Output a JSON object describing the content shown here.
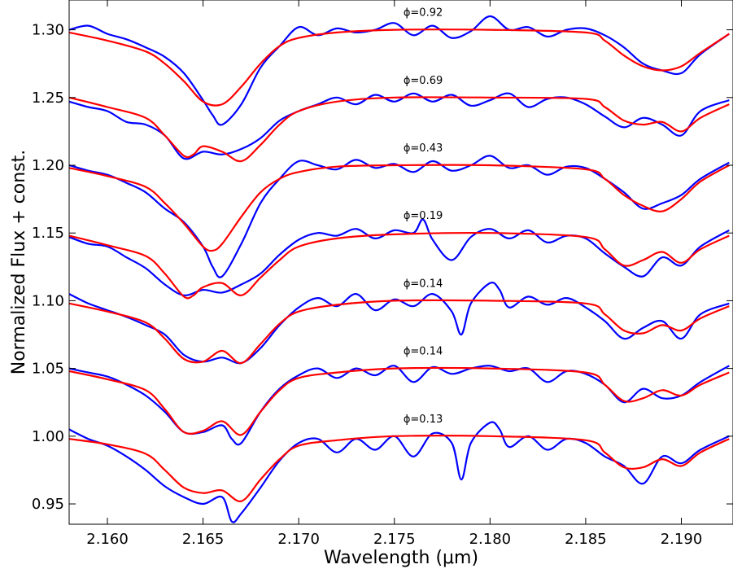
{
  "chart_data": {
    "type": "line",
    "xlabel": "Wavelength (μm)",
    "ylabel": "Normalized Flux + const.",
    "xlim": [
      2.158,
      2.1927
    ],
    "ylim": [
      0.935,
      1.322
    ],
    "xticks": [
      2.16,
      2.165,
      2.17,
      2.175,
      2.18,
      2.185,
      2.19
    ],
    "xtick_labels": [
      "2.160",
      "2.165",
      "2.170",
      "2.175",
      "2.180",
      "2.185",
      "2.190"
    ],
    "yticks": [
      0.95,
      1.0,
      1.05,
      1.1,
      1.15,
      1.2,
      1.25,
      1.3
    ],
    "ytick_labels": [
      "0.95",
      "1.00",
      "1.05",
      "1.10",
      "1.15",
      "1.20",
      "1.25",
      "1.30"
    ],
    "grid": false,
    "colors": {
      "observed": "#0000ff",
      "model": "#ff0000"
    },
    "phase_labels_x": 2.1765,
    "spectra": [
      {
        "label": "ϕ=0.92",
        "offset": 1.3,
        "observed_x": [
          2.158,
          2.159,
          2.16,
          2.161,
          2.162,
          2.163,
          2.164,
          2.165,
          2.1655,
          2.166,
          2.167,
          2.168,
          2.169,
          2.17,
          2.171,
          2.172,
          2.173,
          2.174,
          2.175,
          2.176,
          2.177,
          2.178,
          2.179,
          2.18,
          2.181,
          2.182,
          2.183,
          2.184,
          2.185,
          2.186,
          2.187,
          2.188,
          2.189,
          2.19,
          2.191,
          2.1925
        ],
        "observed_y": [
          1.3,
          1.303,
          1.297,
          1.293,
          1.287,
          1.28,
          1.268,
          1.248,
          1.237,
          1.23,
          1.245,
          1.272,
          1.288,
          1.302,
          1.296,
          1.301,
          1.298,
          1.3,
          1.305,
          1.296,
          1.303,
          1.294,
          1.299,
          1.31,
          1.3,
          1.302,
          1.295,
          1.3,
          1.301,
          1.296,
          1.287,
          1.275,
          1.27,
          1.268,
          1.282,
          1.297
        ],
        "model_x": [
          2.158,
          2.16,
          2.162,
          2.163,
          2.164,
          2.165,
          2.166,
          2.167,
          2.168,
          2.169,
          2.17,
          2.172,
          2.175,
          2.18,
          2.185,
          2.186,
          2.187,
          2.188,
          2.189,
          2.19,
          2.191,
          2.1925
        ],
        "model_y": [
          1.298,
          1.292,
          1.284,
          1.275,
          1.262,
          1.247,
          1.245,
          1.258,
          1.275,
          1.288,
          1.294,
          1.298,
          1.3,
          1.3,
          1.298,
          1.292,
          1.281,
          1.273,
          1.27,
          1.273,
          1.283,
          1.297
        ]
      },
      {
        "label": "ϕ=0.69",
        "offset": 1.25,
        "observed_x": [
          2.158,
          2.159,
          2.16,
          2.161,
          2.162,
          2.163,
          2.164,
          2.165,
          2.166,
          2.167,
          2.168,
          2.169,
          2.17,
          2.171,
          2.172,
          2.173,
          2.174,
          2.175,
          2.176,
          2.177,
          2.178,
          2.179,
          2.18,
          2.181,
          2.182,
          2.183,
          2.184,
          2.185,
          2.186,
          2.187,
          2.188,
          2.189,
          2.19,
          2.191,
          2.1925
        ],
        "observed_y": [
          1.247,
          1.243,
          1.24,
          1.232,
          1.23,
          1.222,
          1.205,
          1.21,
          1.208,
          1.212,
          1.22,
          1.233,
          1.24,
          1.245,
          1.25,
          1.245,
          1.252,
          1.247,
          1.253,
          1.247,
          1.252,
          1.244,
          1.248,
          1.253,
          1.243,
          1.249,
          1.25,
          1.245,
          1.236,
          1.228,
          1.235,
          1.23,
          1.222,
          1.24,
          1.248
        ],
        "model_x": [
          2.158,
          2.16,
          2.162,
          2.163,
          2.164,
          2.1645,
          2.165,
          2.166,
          2.167,
          2.168,
          2.169,
          2.17,
          2.172,
          2.175,
          2.18,
          2.185,
          2.186,
          2.187,
          2.188,
          2.189,
          2.19,
          2.191,
          2.1925
        ],
        "model_y": [
          1.25,
          1.243,
          1.235,
          1.222,
          1.207,
          1.208,
          1.214,
          1.21,
          1.203,
          1.215,
          1.23,
          1.24,
          1.247,
          1.25,
          1.25,
          1.249,
          1.243,
          1.233,
          1.23,
          1.232,
          1.225,
          1.235,
          1.245
        ]
      },
      {
        "label": "ϕ=0.43",
        "offset": 1.2,
        "observed_x": [
          2.158,
          2.159,
          2.16,
          2.161,
          2.162,
          2.163,
          2.164,
          2.165,
          2.1655,
          2.166,
          2.167,
          2.168,
          2.169,
          2.17,
          2.171,
          2.172,
          2.173,
          2.174,
          2.175,
          2.176,
          2.177,
          2.178,
          2.179,
          2.18,
          2.181,
          2.182,
          2.183,
          2.184,
          2.185,
          2.186,
          2.187,
          2.188,
          2.189,
          2.19,
          2.191,
          2.1925
        ],
        "observed_y": [
          1.2,
          1.196,
          1.193,
          1.187,
          1.18,
          1.168,
          1.158,
          1.14,
          1.125,
          1.118,
          1.142,
          1.172,
          1.19,
          1.203,
          1.2,
          1.197,
          1.204,
          1.198,
          1.201,
          1.195,
          1.203,
          1.196,
          1.2,
          1.207,
          1.198,
          1.2,
          1.193,
          1.199,
          1.198,
          1.19,
          1.18,
          1.168,
          1.172,
          1.178,
          1.19,
          1.202
        ],
        "model_x": [
          2.158,
          2.16,
          2.162,
          2.163,
          2.164,
          2.165,
          2.1655,
          2.166,
          2.167,
          2.168,
          2.169,
          2.17,
          2.172,
          2.175,
          2.18,
          2.185,
          2.186,
          2.187,
          2.188,
          2.189,
          2.19,
          2.191,
          2.1925
        ],
        "model_y": [
          1.198,
          1.192,
          1.184,
          1.172,
          1.157,
          1.14,
          1.137,
          1.142,
          1.162,
          1.18,
          1.19,
          1.195,
          1.199,
          1.2,
          1.2,
          1.197,
          1.19,
          1.178,
          1.17,
          1.166,
          1.175,
          1.188,
          1.2
        ]
      },
      {
        "label": "ϕ=0.19",
        "offset": 1.15,
        "observed_x": [
          2.158,
          2.159,
          2.16,
          2.161,
          2.162,
          2.163,
          2.164,
          2.165,
          2.166,
          2.167,
          2.168,
          2.169,
          2.17,
          2.171,
          2.172,
          2.173,
          2.174,
          2.175,
          2.176,
          2.1765,
          2.177,
          2.178,
          2.179,
          2.18,
          2.181,
          2.182,
          2.183,
          2.184,
          2.185,
          2.186,
          2.187,
          2.188,
          2.189,
          2.19,
          2.191,
          2.1925
        ],
        "observed_y": [
          1.147,
          1.142,
          1.14,
          1.132,
          1.124,
          1.112,
          1.104,
          1.108,
          1.106,
          1.112,
          1.12,
          1.134,
          1.145,
          1.15,
          1.148,
          1.153,
          1.146,
          1.152,
          1.15,
          1.16,
          1.145,
          1.13,
          1.147,
          1.153,
          1.146,
          1.152,
          1.143,
          1.148,
          1.146,
          1.135,
          1.125,
          1.118,
          1.132,
          1.126,
          1.14,
          1.152
        ],
        "model_x": [
          2.158,
          2.16,
          2.162,
          2.163,
          2.164,
          2.1645,
          2.165,
          2.166,
          2.167,
          2.168,
          2.169,
          2.17,
          2.172,
          2.175,
          2.18,
          2.185,
          2.186,
          2.187,
          2.188,
          2.189,
          2.19,
          2.191,
          2.1925
        ],
        "model_y": [
          1.148,
          1.141,
          1.133,
          1.12,
          1.103,
          1.104,
          1.11,
          1.113,
          1.104,
          1.117,
          1.13,
          1.14,
          1.146,
          1.149,
          1.15,
          1.147,
          1.138,
          1.126,
          1.13,
          1.136,
          1.128,
          1.138,
          1.148
        ]
      },
      {
        "label": "ϕ=0.14",
        "offset": 1.1,
        "observed_x": [
          2.158,
          2.159,
          2.16,
          2.161,
          2.162,
          2.163,
          2.164,
          2.165,
          2.166,
          2.167,
          2.168,
          2.169,
          2.17,
          2.171,
          2.172,
          2.173,
          2.174,
          2.175,
          2.176,
          2.177,
          2.178,
          2.1785,
          2.179,
          2.18,
          2.1805,
          2.181,
          2.182,
          2.183,
          2.184,
          2.185,
          2.186,
          2.187,
          2.188,
          2.189,
          2.19,
          2.191,
          2.1925
        ],
        "observed_y": [
          1.105,
          1.098,
          1.093,
          1.088,
          1.082,
          1.075,
          1.06,
          1.055,
          1.058,
          1.054,
          1.065,
          1.082,
          1.095,
          1.102,
          1.096,
          1.105,
          1.093,
          1.101,
          1.096,
          1.105,
          1.092,
          1.075,
          1.098,
          1.113,
          1.108,
          1.095,
          1.103,
          1.097,
          1.102,
          1.095,
          1.085,
          1.072,
          1.08,
          1.085,
          1.072,
          1.09,
          1.098
        ],
        "model_x": [
          2.158,
          2.16,
          2.162,
          2.163,
          2.164,
          2.165,
          2.166,
          2.167,
          2.168,
          2.169,
          2.17,
          2.172,
          2.175,
          2.18,
          2.185,
          2.186,
          2.187,
          2.188,
          2.189,
          2.19,
          2.191,
          2.1925
        ],
        "model_y": [
          1.098,
          1.092,
          1.084,
          1.072,
          1.057,
          1.055,
          1.063,
          1.054,
          1.068,
          1.083,
          1.092,
          1.097,
          1.1,
          1.1,
          1.098,
          1.09,
          1.078,
          1.076,
          1.082,
          1.078,
          1.087,
          1.096
        ]
      },
      {
        "label": "ϕ=0.14",
        "offset": 1.05,
        "observed_x": [
          2.158,
          2.159,
          2.16,
          2.161,
          2.162,
          2.163,
          2.164,
          2.165,
          2.166,
          2.1665,
          2.167,
          2.168,
          2.169,
          2.17,
          2.171,
          2.172,
          2.173,
          2.174,
          2.175,
          2.176,
          2.177,
          2.178,
          2.179,
          2.18,
          2.181,
          2.182,
          2.183,
          2.184,
          2.185,
          2.186,
          2.187,
          2.188,
          2.189,
          2.19,
          2.191,
          2.1925
        ],
        "observed_y": [
          1.05,
          1.047,
          1.044,
          1.038,
          1.03,
          1.018,
          1.003,
          1.003,
          1.008,
          0.998,
          0.995,
          1.018,
          1.035,
          1.045,
          1.05,
          1.043,
          1.05,
          1.045,
          1.052,
          1.04,
          1.051,
          1.046,
          1.05,
          1.052,
          1.048,
          1.05,
          1.04,
          1.048,
          1.046,
          1.038,
          1.025,
          1.035,
          1.028,
          1.03,
          1.04,
          1.052
        ],
        "model_x": [
          2.158,
          2.16,
          2.162,
          2.163,
          2.164,
          2.165,
          2.166,
          2.167,
          2.168,
          2.169,
          2.17,
          2.172,
          2.175,
          2.18,
          2.185,
          2.186,
          2.187,
          2.188,
          2.189,
          2.19,
          2.191,
          2.1925
        ],
        "model_y": [
          1.048,
          1.042,
          1.034,
          1.02,
          1.003,
          1.004,
          1.011,
          1.001,
          1.018,
          1.034,
          1.043,
          1.047,
          1.05,
          1.05,
          1.047,
          1.038,
          1.026,
          1.028,
          1.034,
          1.03,
          1.038,
          1.047
        ]
      },
      {
        "label": "ϕ=0.13",
        "offset": 1.0,
        "observed_x": [
          2.158,
          2.159,
          2.16,
          2.161,
          2.162,
          2.163,
          2.164,
          2.165,
          2.166,
          2.1665,
          2.167,
          2.168,
          2.169,
          2.17,
          2.171,
          2.172,
          2.173,
          2.174,
          2.175,
          2.176,
          2.177,
          2.178,
          2.1785,
          2.179,
          2.18,
          2.1805,
          2.181,
          2.182,
          2.183,
          2.184,
          2.185,
          2.186,
          2.187,
          2.188,
          2.189,
          2.19,
          2.191,
          2.1925
        ],
        "observed_y": [
          1.005,
          0.998,
          0.993,
          0.985,
          0.975,
          0.963,
          0.955,
          0.95,
          0.955,
          0.937,
          0.943,
          0.962,
          0.982,
          0.995,
          0.998,
          0.988,
          0.998,
          0.99,
          1.0,
          0.985,
          1.002,
          0.995,
          0.968,
          0.995,
          1.01,
          1.005,
          0.992,
          1.0,
          0.99,
          0.998,
          0.995,
          0.985,
          0.978,
          0.965,
          0.985,
          0.98,
          0.99,
          1.0
        ],
        "model_x": [
          2.158,
          2.16,
          2.162,
          2.163,
          2.164,
          2.165,
          2.166,
          2.167,
          2.168,
          2.169,
          2.17,
          2.172,
          2.175,
          2.18,
          2.185,
          2.186,
          2.187,
          2.188,
          2.189,
          2.19,
          2.191,
          2.1925
        ],
        "model_y": [
          0.998,
          0.994,
          0.987,
          0.975,
          0.962,
          0.958,
          0.96,
          0.952,
          0.968,
          0.983,
          0.993,
          0.997,
          1.0,
          1.0,
          0.997,
          0.988,
          0.977,
          0.977,
          0.983,
          0.978,
          0.988,
          0.998
        ]
      }
    ]
  }
}
